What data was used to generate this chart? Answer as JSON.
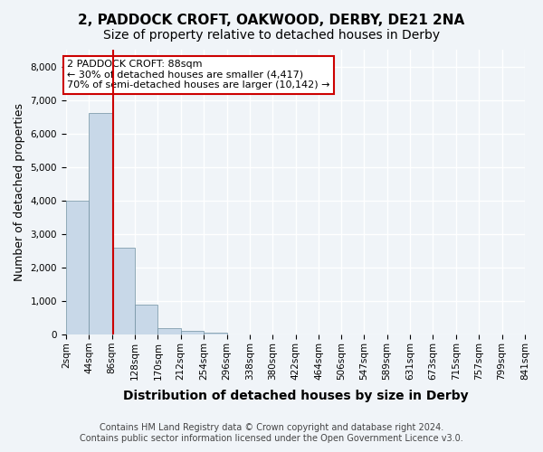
{
  "title": "2, PADDOCK CROFT, OAKWOOD, DERBY, DE21 2NA",
  "subtitle": "Size of property relative to detached houses in Derby",
  "xlabel": "Distribution of detached houses by size in Derby",
  "ylabel": "Number of detached properties",
  "bins": [
    "2sqm",
    "44sqm",
    "86sqm",
    "128sqm",
    "170sqm",
    "212sqm",
    "254sqm",
    "296sqm",
    "338sqm",
    "380sqm",
    "422sqm",
    "464sqm",
    "506sqm",
    "547sqm",
    "589sqm",
    "631sqm",
    "673sqm",
    "715sqm",
    "757sqm",
    "799sqm",
    "841sqm"
  ],
  "bin_edges": [
    2,
    44,
    86,
    128,
    170,
    212,
    254,
    296,
    338,
    380,
    422,
    464,
    506,
    547,
    589,
    631,
    673,
    715,
    757,
    799,
    841
  ],
  "values": [
    4000,
    6600,
    2600,
    900,
    200,
    100,
    50,
    10,
    0,
    0,
    0,
    0,
    0,
    0,
    0,
    0,
    0,
    0,
    0,
    0
  ],
  "bar_color": "#c8d8e8",
  "bar_edge_color": "#7090a0",
  "property_size": 88,
  "property_label": "2 PADDOCK CROFT: 88sqm",
  "annotation_line1": "← 30% of detached houses are smaller (4,417)",
  "annotation_line2": "70% of semi-detached houses are larger (10,142) →",
  "vline_color": "#cc0000",
  "annotation_box_color": "#cc0000",
  "ylim": [
    0,
    8500
  ],
  "yticks": [
    0,
    1000,
    2000,
    3000,
    4000,
    5000,
    6000,
    7000,
    8000
  ],
  "background_color": "#f0f4f8",
  "grid_color": "#ffffff",
  "footer_line1": "Contains HM Land Registry data © Crown copyright and database right 2024.",
  "footer_line2": "Contains public sector information licensed under the Open Government Licence v3.0.",
  "title_fontsize": 11,
  "subtitle_fontsize": 10,
  "axis_label_fontsize": 9,
  "tick_fontsize": 7.5,
  "footer_fontsize": 7
}
